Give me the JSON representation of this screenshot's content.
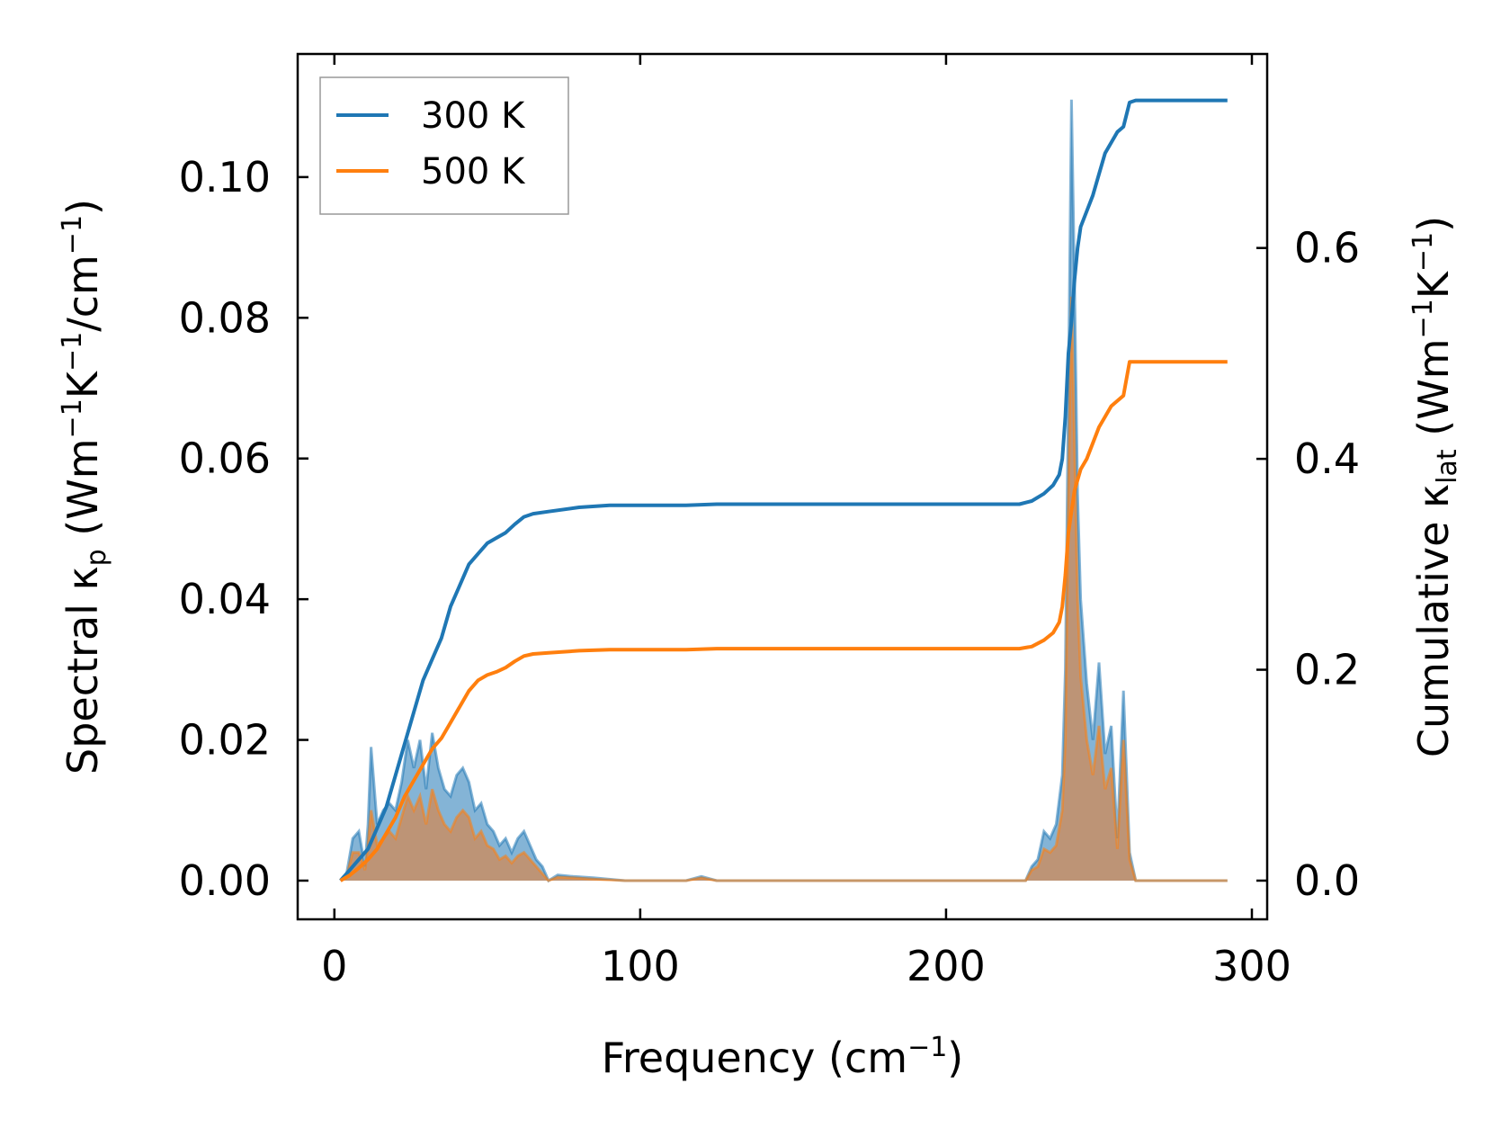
{
  "chart_data": {
    "type": "area",
    "xlabel": "Frequency (cm",
    "xlabel_sup": "−1",
    "xlabel_end": ")",
    "ylabel": {
      "a": "Spectral κ",
      "a_sub": "p",
      "b": " (Wm",
      "b_sup": "−1",
      "c": "K",
      "c_sup": "−1",
      "d": "/cm",
      "d_sup": "−1",
      "e": ")"
    },
    "y2label": {
      "a": "Cumulative κ",
      "a_sub": "lat",
      "b": " (Wm",
      "b_sup": "−1",
      "c": "K",
      "c_sup": "−1",
      "d": ")"
    },
    "xlim": [
      -12,
      305
    ],
    "ylim": [
      -0.0055,
      0.1175
    ],
    "y2lim": [
      -0.0367,
      0.784
    ],
    "x_ticks": [
      0,
      100,
      200,
      300
    ],
    "x_tick_labels": [
      "0",
      "100",
      "200",
      "300"
    ],
    "y_ticks": [
      0.0,
      0.02,
      0.04,
      0.06,
      0.08,
      0.1
    ],
    "y_tick_labels": [
      "0.00",
      "0.02",
      "0.04",
      "0.06",
      "0.08",
      "0.10"
    ],
    "y2_ticks": [
      0.0,
      0.2,
      0.4,
      0.6
    ],
    "y2_tick_labels": [
      "0.0",
      "0.2",
      "0.4",
      "0.6"
    ],
    "legend": {
      "position": "top-left"
    },
    "colors": {
      "300K": "#1f77b4",
      "500K": "#ff7f0e",
      "fill300": "#1f77b4",
      "fill500": "#d08a55"
    },
    "series": [
      {
        "name": "300 K",
        "color": "#1f77b4",
        "spectral": [
          [
            2,
            0
          ],
          [
            4,
            0.001
          ],
          [
            6,
            0.006
          ],
          [
            8,
            0.007
          ],
          [
            10,
            0.002
          ],
          [
            11,
            0.008
          ],
          [
            12,
            0.019
          ],
          [
            14,
            0.008
          ],
          [
            16,
            0.01
          ],
          [
            18,
            0.011
          ],
          [
            20,
            0.01
          ],
          [
            22,
            0.014
          ],
          [
            24,
            0.02
          ],
          [
            26,
            0.016
          ],
          [
            28,
            0.02
          ],
          [
            30,
            0.013
          ],
          [
            32,
            0.021
          ],
          [
            34,
            0.016
          ],
          [
            36,
            0.013
          ],
          [
            38,
            0.012
          ],
          [
            40,
            0.015
          ],
          [
            42,
            0.016
          ],
          [
            44,
            0.014
          ],
          [
            46,
            0.01
          ],
          [
            48,
            0.011
          ],
          [
            50,
            0.008
          ],
          [
            52,
            0.007
          ],
          [
            54,
            0.005
          ],
          [
            56,
            0.006
          ],
          [
            58,
            0.004
          ],
          [
            60,
            0.006
          ],
          [
            62,
            0.007
          ],
          [
            64,
            0.005
          ],
          [
            66,
            0.003
          ],
          [
            68,
            0.002
          ],
          [
            70,
            0
          ],
          [
            73,
            0.0008
          ],
          [
            78,
            0.0006
          ],
          [
            85,
            0.0004
          ],
          [
            95,
            0
          ],
          [
            115,
            0
          ],
          [
            120,
            0.0006
          ],
          [
            125,
            0
          ],
          [
            135,
            0
          ],
          [
            200,
            0
          ],
          [
            226,
            0
          ],
          [
            228,
            0.002
          ],
          [
            230,
            0.003
          ],
          [
            232,
            0.007
          ],
          [
            234,
            0.006
          ],
          [
            236,
            0.008
          ],
          [
            238,
            0.015
          ],
          [
            239,
            0.03
          ],
          [
            240,
            0.07
          ],
          [
            241,
            0.111
          ],
          [
            242,
            0.085
          ],
          [
            243,
            0.055
          ],
          [
            244,
            0.04
          ],
          [
            246,
            0.028
          ],
          [
            248,
            0.02
          ],
          [
            250,
            0.031
          ],
          [
            252,
            0.018
          ],
          [
            254,
            0.022
          ],
          [
            256,
            0.006
          ],
          [
            258,
            0.027
          ],
          [
            260,
            0.004
          ],
          [
            262,
            0
          ],
          [
            280,
            0
          ],
          [
            292,
            0
          ]
        ],
        "cumulative": [
          [
            2,
            0
          ],
          [
            5,
            0.01
          ],
          [
            8,
            0.02
          ],
          [
            11,
            0.03
          ],
          [
            14,
            0.05
          ],
          [
            17,
            0.07
          ],
          [
            20,
            0.1
          ],
          [
            23,
            0.13
          ],
          [
            26,
            0.16
          ],
          [
            29,
            0.19
          ],
          [
            32,
            0.21
          ],
          [
            35,
            0.23
          ],
          [
            38,
            0.26
          ],
          [
            41,
            0.28
          ],
          [
            44,
            0.3
          ],
          [
            47,
            0.31
          ],
          [
            50,
            0.32
          ],
          [
            53,
            0.325
          ],
          [
            56,
            0.33
          ],
          [
            59,
            0.338
          ],
          [
            62,
            0.345
          ],
          [
            65,
            0.348
          ],
          [
            70,
            0.35
          ],
          [
            80,
            0.354
          ],
          [
            90,
            0.356
          ],
          [
            100,
            0.356
          ],
          [
            115,
            0.356
          ],
          [
            125,
            0.357
          ],
          [
            150,
            0.357
          ],
          [
            200,
            0.357
          ],
          [
            224,
            0.357
          ],
          [
            228,
            0.36
          ],
          [
            232,
            0.367
          ],
          [
            235,
            0.375
          ],
          [
            237,
            0.385
          ],
          [
            238,
            0.4
          ],
          [
            239,
            0.44
          ],
          [
            240,
            0.5
          ],
          [
            241,
            0.53
          ],
          [
            242,
            0.57
          ],
          [
            243,
            0.6
          ],
          [
            244,
            0.62
          ],
          [
            246,
            0.635
          ],
          [
            248,
            0.65
          ],
          [
            250,
            0.67
          ],
          [
            252,
            0.69
          ],
          [
            254,
            0.7
          ],
          [
            256,
            0.71
          ],
          [
            258,
            0.715
          ],
          [
            260,
            0.738
          ],
          [
            262,
            0.74
          ],
          [
            280,
            0.74
          ],
          [
            292,
            0.74
          ]
        ]
      },
      {
        "name": "500 K",
        "color": "#ff7f0e",
        "spectral": [
          [
            2,
            0
          ],
          [
            4,
            0.0006
          ],
          [
            6,
            0.004
          ],
          [
            8,
            0.004
          ],
          [
            10,
            0.0015
          ],
          [
            11,
            0.005
          ],
          [
            12,
            0.01
          ],
          [
            14,
            0.005
          ],
          [
            16,
            0.006
          ],
          [
            18,
            0.007
          ],
          [
            20,
            0.006
          ],
          [
            22,
            0.009
          ],
          [
            24,
            0.012
          ],
          [
            26,
            0.01
          ],
          [
            28,
            0.012
          ],
          [
            30,
            0.008
          ],
          [
            32,
            0.013
          ],
          [
            34,
            0.01
          ],
          [
            36,
            0.008
          ],
          [
            38,
            0.007
          ],
          [
            40,
            0.009
          ],
          [
            42,
            0.01
          ],
          [
            44,
            0.009
          ],
          [
            46,
            0.006
          ],
          [
            48,
            0.007
          ],
          [
            50,
            0.005
          ],
          [
            52,
            0.0045
          ],
          [
            54,
            0.003
          ],
          [
            56,
            0.0035
          ],
          [
            58,
            0.0025
          ],
          [
            60,
            0.0035
          ],
          [
            62,
            0.004
          ],
          [
            64,
            0.003
          ],
          [
            66,
            0.002
          ],
          [
            68,
            0.001
          ],
          [
            70,
            0
          ],
          [
            73,
            0.0005
          ],
          [
            78,
            0.0004
          ],
          [
            85,
            0.0002
          ],
          [
            95,
            0
          ],
          [
            115,
            0
          ],
          [
            120,
            0.0004
          ],
          [
            125,
            0
          ],
          [
            135,
            0
          ],
          [
            200,
            0
          ],
          [
            226,
            0
          ],
          [
            228,
            0.0015
          ],
          [
            230,
            0.002
          ],
          [
            232,
            0.0045
          ],
          [
            234,
            0.004
          ],
          [
            236,
            0.005
          ],
          [
            238,
            0.01
          ],
          [
            239,
            0.02
          ],
          [
            240,
            0.055
          ],
          [
            241,
            0.083
          ],
          [
            242,
            0.062
          ],
          [
            243,
            0.04
          ],
          [
            244,
            0.029
          ],
          [
            246,
            0.02
          ],
          [
            248,
            0.015
          ],
          [
            250,
            0.022
          ],
          [
            252,
            0.013
          ],
          [
            254,
            0.016
          ],
          [
            256,
            0.0045
          ],
          [
            258,
            0.02
          ],
          [
            260,
            0.003
          ],
          [
            262,
            0
          ],
          [
            280,
            0
          ],
          [
            292,
            0
          ]
        ],
        "cumulative": [
          [
            2,
            0
          ],
          [
            5,
            0.005
          ],
          [
            8,
            0.012
          ],
          [
            11,
            0.02
          ],
          [
            14,
            0.03
          ],
          [
            17,
            0.045
          ],
          [
            20,
            0.06
          ],
          [
            23,
            0.08
          ],
          [
            26,
            0.095
          ],
          [
            29,
            0.11
          ],
          [
            32,
            0.125
          ],
          [
            35,
            0.135
          ],
          [
            38,
            0.15
          ],
          [
            41,
            0.165
          ],
          [
            44,
            0.18
          ],
          [
            47,
            0.19
          ],
          [
            50,
            0.195
          ],
          [
            53,
            0.198
          ],
          [
            56,
            0.202
          ],
          [
            59,
            0.208
          ],
          [
            62,
            0.213
          ],
          [
            65,
            0.215
          ],
          [
            70,
            0.216
          ],
          [
            80,
            0.218
          ],
          [
            90,
            0.219
          ],
          [
            100,
            0.219
          ],
          [
            115,
            0.219
          ],
          [
            125,
            0.22
          ],
          [
            150,
            0.22
          ],
          [
            200,
            0.22
          ],
          [
            224,
            0.22
          ],
          [
            228,
            0.222
          ],
          [
            232,
            0.228
          ],
          [
            235,
            0.235
          ],
          [
            237,
            0.245
          ],
          [
            238,
            0.26
          ],
          [
            239,
            0.29
          ],
          [
            240,
            0.33
          ],
          [
            241,
            0.35
          ],
          [
            242,
            0.37
          ],
          [
            243,
            0.38
          ],
          [
            244,
            0.39
          ],
          [
            246,
            0.4
          ],
          [
            248,
            0.415
          ],
          [
            250,
            0.43
          ],
          [
            252,
            0.44
          ],
          [
            254,
            0.45
          ],
          [
            256,
            0.455
          ],
          [
            258,
            0.46
          ],
          [
            260,
            0.492
          ],
          [
            262,
            0.492
          ],
          [
            280,
            0.492
          ],
          [
            292,
            0.492
          ]
        ]
      }
    ]
  }
}
